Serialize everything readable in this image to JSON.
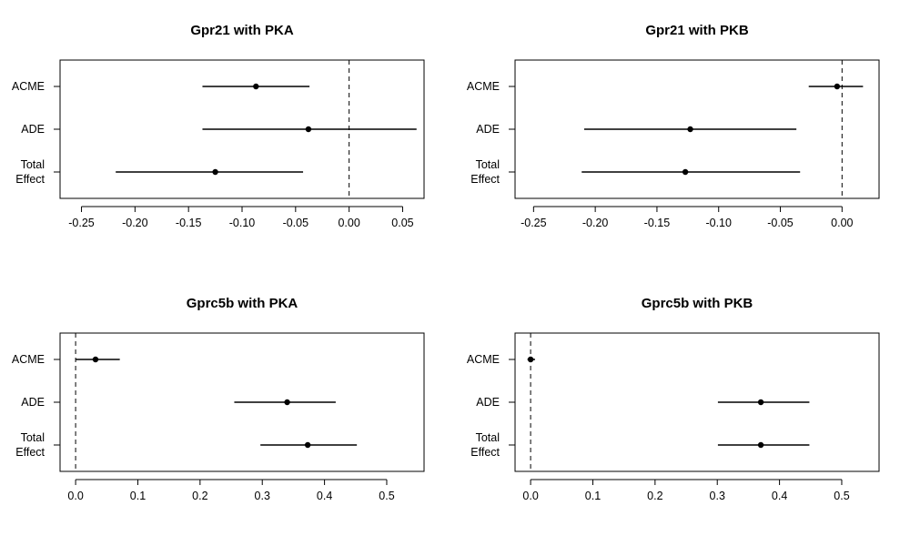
{
  "chart_data": [
    {
      "type": "forest",
      "title": "Gpr21 with PKA",
      "categories": [
        "ACME",
        "ADE",
        "Total Effect"
      ],
      "category_lines": [
        [
          "ACME"
        ],
        [
          "ADE"
        ],
        [
          "Total",
          "Effect"
        ]
      ],
      "estimates": [
        -0.087,
        -0.038,
        -0.125
      ],
      "ci_low": [
        -0.137,
        -0.137,
        -0.218
      ],
      "ci_high": [
        -0.037,
        0.063,
        -0.043
      ],
      "reference_line": 0,
      "reference_style": "dashed",
      "xlim": [
        -0.27,
        0.07
      ],
      "xticks": [
        -0.25,
        -0.2,
        -0.15,
        -0.1,
        -0.05,
        0.0,
        0.05
      ],
      "xtick_labels": [
        "-0.25",
        "-0.20",
        "-0.15",
        "-0.10",
        "-0.05",
        "0.00",
        "0.05"
      ]
    },
    {
      "type": "forest",
      "title": "Gpr21 with PKB",
      "categories": [
        "ACME",
        "ADE",
        "Total Effect"
      ],
      "category_lines": [
        [
          "ACME"
        ],
        [
          "ADE"
        ],
        [
          "Total",
          "Effect"
        ]
      ],
      "estimates": [
        -0.004,
        -0.123,
        -0.127
      ],
      "ci_low": [
        -0.027,
        -0.209,
        -0.211
      ],
      "ci_high": [
        0.017,
        -0.037,
        -0.034
      ],
      "reference_line": 0,
      "reference_style": "dashed",
      "xlim": [
        -0.265,
        0.03
      ],
      "xticks": [
        -0.25,
        -0.2,
        -0.15,
        -0.1,
        -0.05,
        0.0
      ],
      "xtick_labels": [
        "-0.25",
        "-0.20",
        "-0.15",
        "-0.10",
        "-0.05",
        "0.00"
      ]
    },
    {
      "type": "forest",
      "title": "Gprc5b with PKA",
      "categories": [
        "ACME",
        "ADE",
        "Total Effect"
      ],
      "category_lines": [
        [
          "ACME"
        ],
        [
          "ADE"
        ],
        [
          "Total",
          "Effect"
        ]
      ],
      "estimates": [
        0.032,
        0.34,
        0.373
      ],
      "ci_low": [
        0.0,
        0.255,
        0.297
      ],
      "ci_high": [
        0.071,
        0.418,
        0.452
      ],
      "reference_line": 0,
      "reference_style": "dashed",
      "xlim": [
        -0.025,
        0.56
      ],
      "xticks": [
        0.0,
        0.1,
        0.2,
        0.3,
        0.4,
        0.5
      ],
      "xtick_labels": [
        "0.0",
        "0.1",
        "0.2",
        "0.3",
        "0.4",
        "0.5"
      ]
    },
    {
      "type": "forest",
      "title": "Gprc5b with PKB",
      "categories": [
        "ACME",
        "ADE",
        "Total Effect"
      ],
      "category_lines": [
        [
          "ACME"
        ],
        [
          "ADE"
        ],
        [
          "Total",
          "Effect"
        ]
      ],
      "estimates": [
        0.0,
        0.37,
        0.37
      ],
      "ci_low": [
        -0.005,
        0.301,
        0.301
      ],
      "ci_high": [
        0.007,
        0.448,
        0.448
      ],
      "reference_line": 0,
      "reference_style": "dashed",
      "xlim": [
        -0.025,
        0.56
      ],
      "xticks": [
        0.0,
        0.1,
        0.2,
        0.3,
        0.4,
        0.5
      ],
      "xtick_labels": [
        "0.0",
        "0.1",
        "0.2",
        "0.3",
        "0.4",
        "0.5"
      ]
    }
  ]
}
